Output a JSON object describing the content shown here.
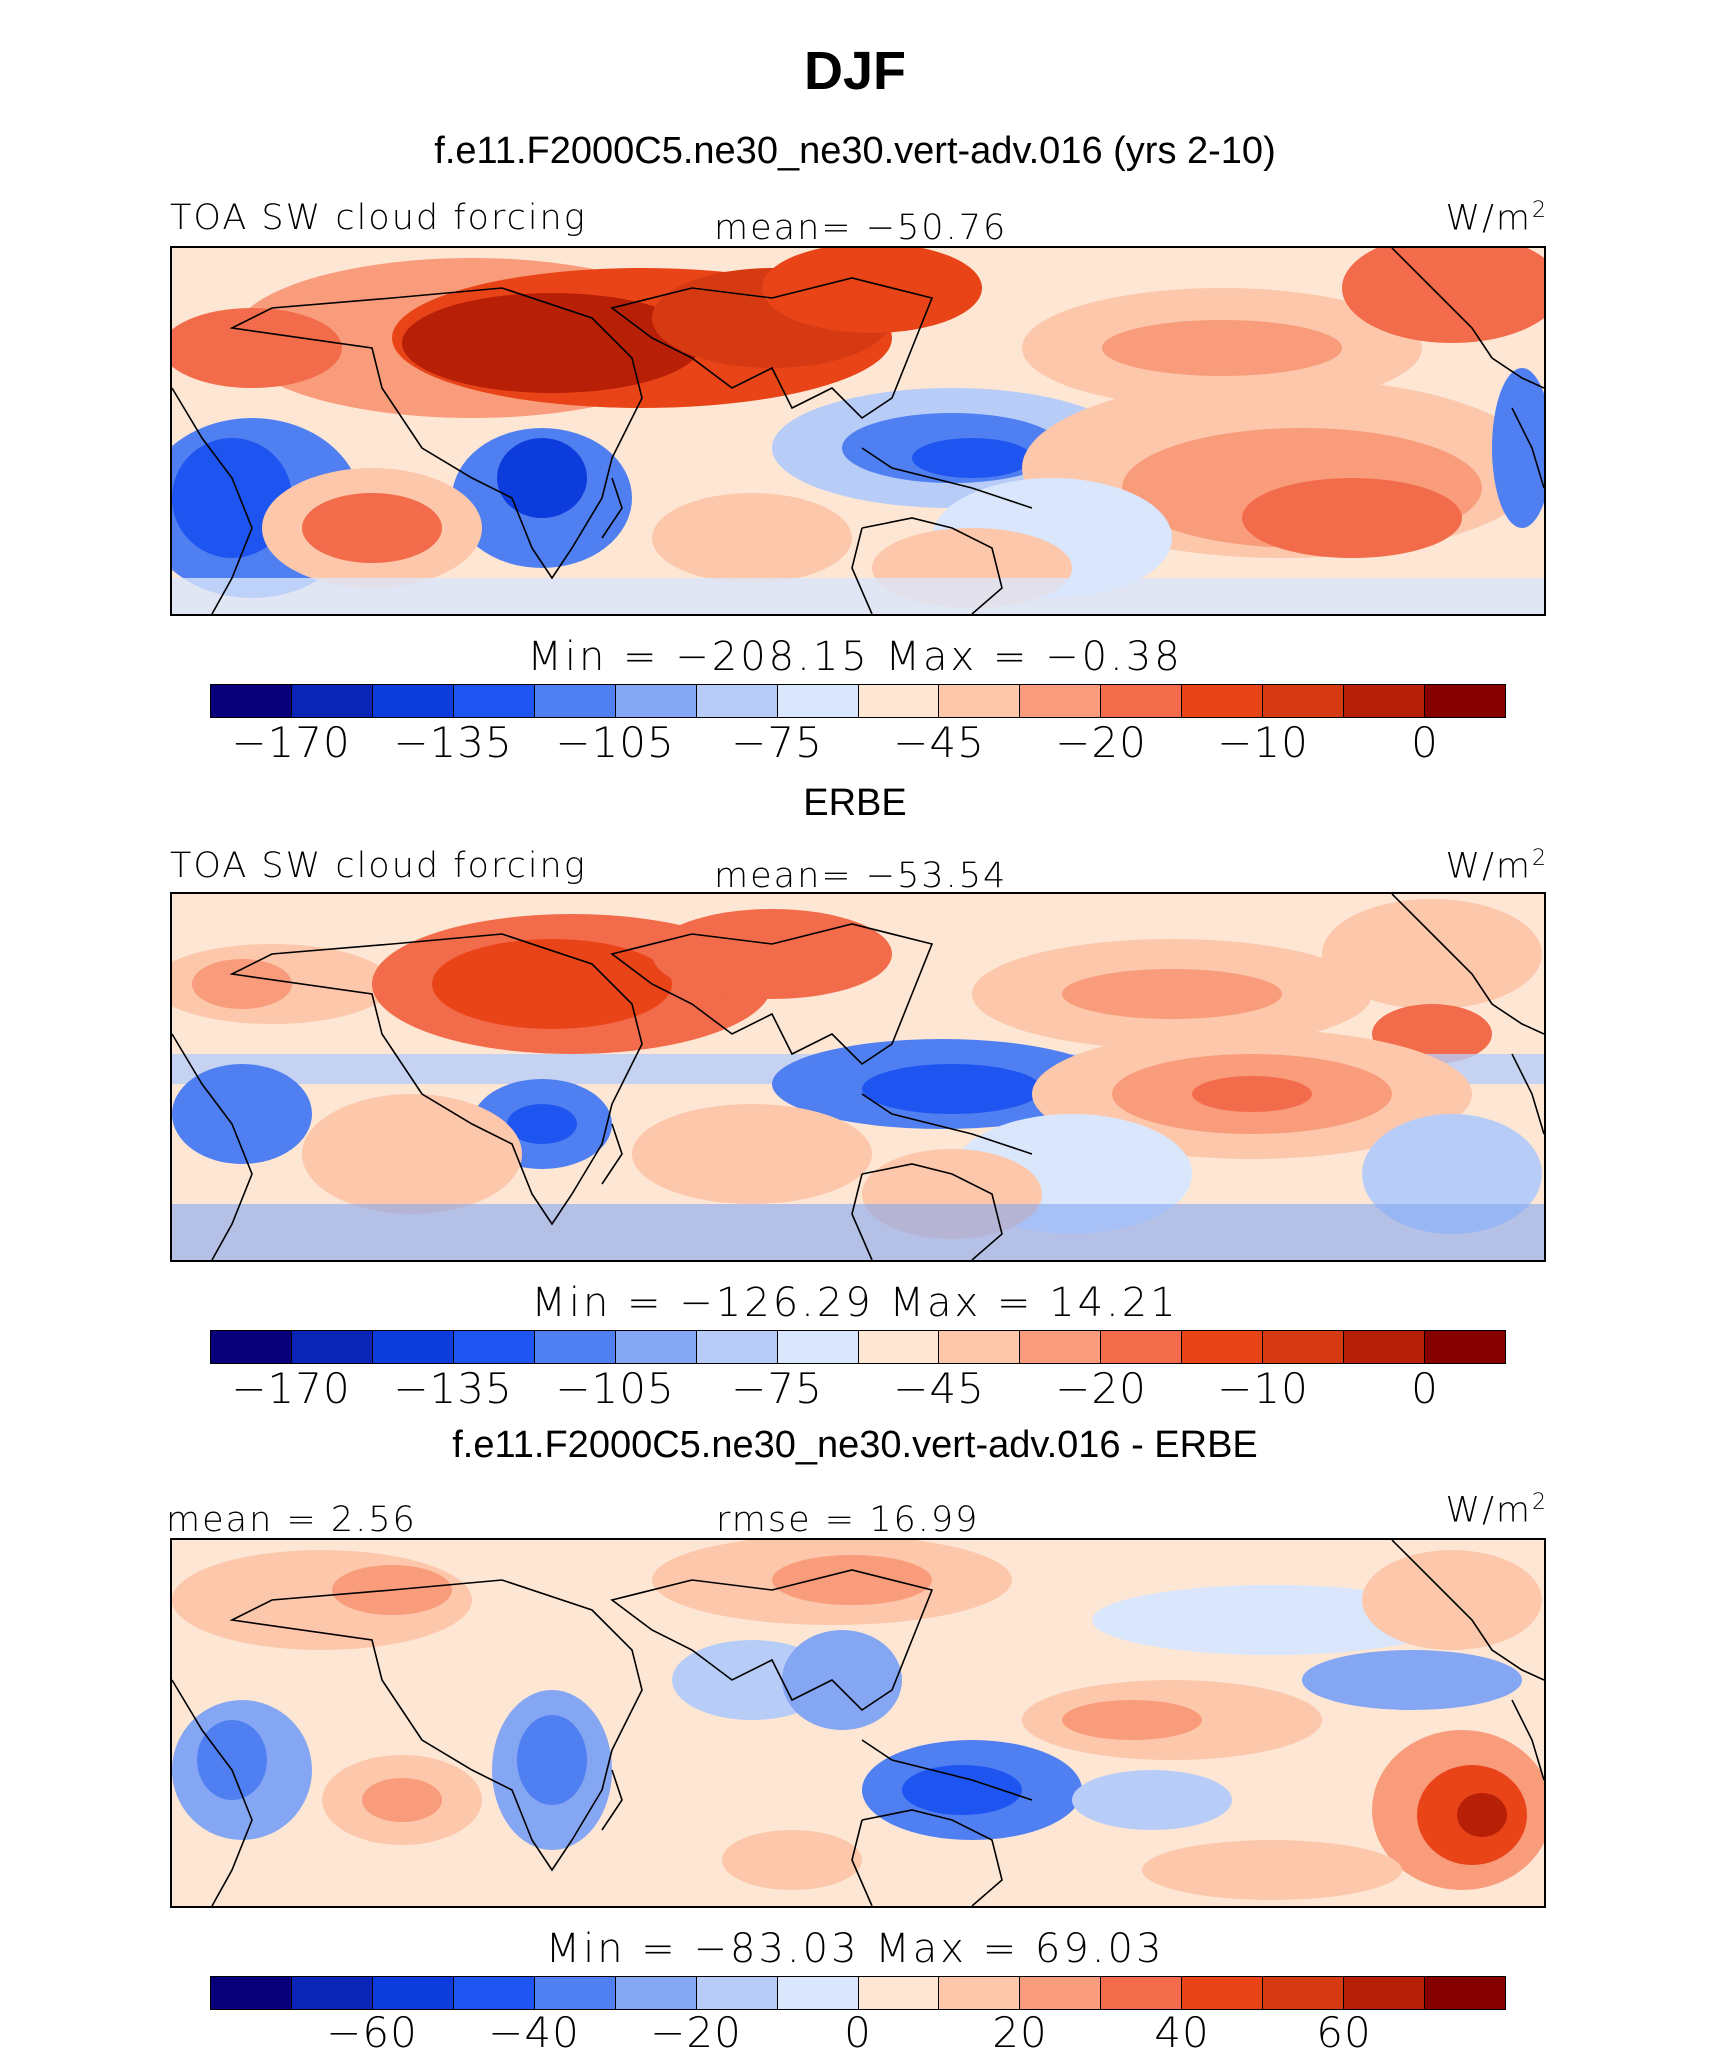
{
  "title": "DJF",
  "colors": [
    "#08007a",
    "#0a24b8",
    "#0d3cdc",
    "#1e55f0",
    "#4f7ff0",
    "#85a6f2",
    "#b7cdf8",
    "#d9e6fb",
    "#fde6d4",
    "#fcc7ab",
    "#f99c7c",
    "#f26b4a",
    "#e84418",
    "#d63a12",
    "#b72006",
    "#860000"
  ],
  "chart_data": [
    {
      "type": "heatmap",
      "panel_title": "f.e11.F2000C5.ne30_ne30.vert-adv.016 (yrs 2-10)",
      "left_label": "TOA SW cloud forcing",
      "center_label": "mean=  −50.76",
      "units": "W/m",
      "units_sup": "2",
      "minmax": "Min  =  −208.15  Max  =   −0.38",
      "min": -208.15,
      "max": -0.38,
      "mean": -50.76,
      "colorbar_ticks": [
        "−170",
        "−135",
        "−105",
        "−75",
        "−45",
        "−20",
        "−10",
        "0"
      ]
    },
    {
      "type": "heatmap",
      "panel_title": "ERBE",
      "left_label": "TOA SW cloud forcing",
      "center_label": "mean=  −53.54",
      "units": "W/m",
      "units_sup": "2",
      "minmax": "Min  =  −126.29  Max  =   14.21",
      "min": -126.29,
      "max": 14.21,
      "mean": -53.54,
      "colorbar_ticks": [
        "−170",
        "−135",
        "−105",
        "−75",
        "−45",
        "−20",
        "−10",
        "0"
      ]
    },
    {
      "type": "heatmap",
      "panel_title": "f.e11.F2000C5.ne30_ne30.vert-adv.016 - ERBE",
      "left_label": "mean =   2.56",
      "center_label": "rmse  =   16.99",
      "units": "W/m",
      "units_sup": "2",
      "minmax": "Min  =  −83.03  Max  =   69.03",
      "min": -83.03,
      "max": 69.03,
      "mean": 2.56,
      "rmse": 16.99,
      "colorbar_ticks": [
        "−60",
        "−40",
        "−20",
        "0",
        "20",
        "40",
        "60"
      ]
    }
  ]
}
